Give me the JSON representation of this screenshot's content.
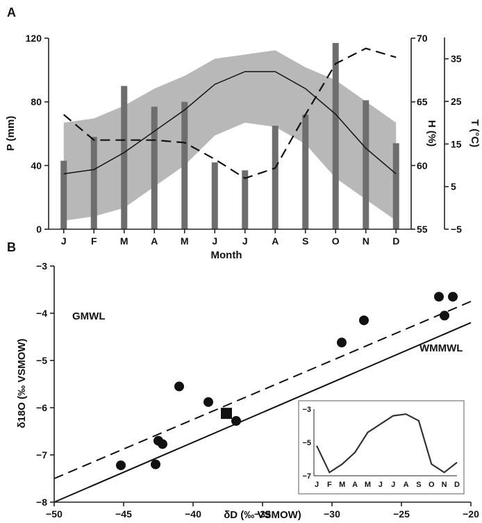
{
  "figure": {
    "panel_a_label": "A",
    "panel_b_label": "B"
  },
  "chart_data": [
    {
      "id": "A",
      "type": "bar",
      "categories": [
        "J",
        "F",
        "M",
        "A",
        "M",
        "J",
        "J",
        "A",
        "S",
        "O",
        "N",
        "D"
      ],
      "xlabel": "Month",
      "y_left": {
        "label": "P (mm)",
        "range": [
          0,
          120
        ],
        "ticks": [
          0,
          40,
          80,
          120
        ]
      },
      "y_h": {
        "label": "H (%)",
        "range": [
          55,
          70
        ],
        "ticks": [
          55,
          60,
          65,
          70
        ]
      },
      "y_t": {
        "label": "T (°C)",
        "range": [
          -5,
          40
        ],
        "ticks": [
          "−5",
          "5",
          "15",
          "25",
          "35"
        ],
        "tick_values": [
          -5,
          5,
          15,
          25,
          35
        ]
      },
      "precipitation": [
        43,
        58,
        90,
        77,
        80,
        42,
        37,
        65,
        72,
        117,
        81,
        54
      ],
      "humidity": [
        64,
        62,
        62,
        62,
        61.8,
        60.5,
        59,
        59.8,
        64,
        68,
        69.2,
        68.5
      ],
      "temperature_mean": [
        8,
        9,
        13,
        18,
        23,
        29,
        32,
        32,
        28,
        22,
        14,
        8
      ],
      "temperature_band_upper": [
        20,
        21,
        24,
        28,
        31,
        35,
        36,
        37,
        33,
        30,
        25,
        20
      ],
      "temperature_band_lower": [
        -3,
        -2,
        0,
        5,
        10,
        17,
        20,
        19,
        15,
        7,
        2,
        -3
      ],
      "colors": {
        "bars": "#6e6e6e",
        "band": "#b8b8b8",
        "mean_line": "#111111",
        "humidity_line": "#111111"
      }
    },
    {
      "id": "B",
      "type": "scatter",
      "xlabel": "δD (‰ VSMOW)",
      "ylabel": "δ18O (‰ VSMOW)",
      "xlim": [
        -50,
        -20
      ],
      "ylim": [
        -8,
        -3
      ],
      "x_ticks": [
        "−50",
        "−45",
        "−40",
        "−35",
        "−30",
        "−25",
        "−20"
      ],
      "x_tick_values": [
        -50,
        -45,
        -40,
        -35,
        -30,
        -25,
        -20
      ],
      "y_ticks": [
        "−8",
        "−7",
        "−6",
        "−5",
        "−4",
        "−3"
      ],
      "y_tick_values": [
        -8,
        -7,
        -6,
        -5,
        -4,
        -3
      ],
      "points": [
        {
          "x": -45.2,
          "y": -7.22
        },
        {
          "x": -42.7,
          "y": -7.2
        },
        {
          "x": -42.5,
          "y": -6.7
        },
        {
          "x": -42.2,
          "y": -6.77
        },
        {
          "x": -41.0,
          "y": -5.55
        },
        {
          "x": -38.9,
          "y": -5.88
        },
        {
          "x": -36.9,
          "y": -6.28
        },
        {
          "x": -29.3,
          "y": -4.62
        },
        {
          "x": -27.7,
          "y": -4.15
        },
        {
          "x": -22.3,
          "y": -3.65
        },
        {
          "x": -21.9,
          "y": -4.05
        },
        {
          "x": -21.3,
          "y": -3.65
        }
      ],
      "mean_point": {
        "x": -37.6,
        "y": -6.12
      },
      "lines": [
        {
          "name": "GMWL",
          "style": "dashed",
          "x": [
            -50,
            -20
          ],
          "y": [
            -7.5,
            -3.75
          ]
        },
        {
          "name": "WMMWL",
          "style": "solid",
          "x": [
            -50,
            -20
          ],
          "y": [
            -8.0,
            -4.2
          ]
        }
      ],
      "inset": {
        "categories": [
          "J",
          "F",
          "M",
          "A",
          "M",
          "J",
          "J",
          "A",
          "S",
          "O",
          "N",
          "D"
        ],
        "y_ticks": [
          "−3",
          "−5",
          "−7"
        ],
        "y_tick_values": [
          -3,
          -5,
          -7
        ],
        "ylim": [
          -7,
          -3
        ],
        "values": [
          -5.2,
          -6.8,
          -6.3,
          -5.6,
          -4.4,
          -3.9,
          -3.4,
          -3.3,
          -3.7,
          -6.3,
          -6.8,
          -6.2
        ]
      }
    }
  ]
}
